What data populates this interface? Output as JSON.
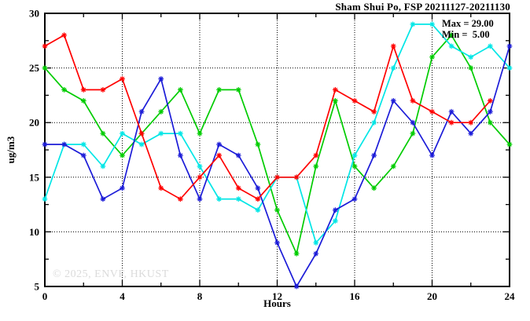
{
  "title": "Sham Shui Po, FSP 20211127-20211130",
  "legend": {
    "max_label": "Max = 29.00",
    "min_label": "Min =  5.00"
  },
  "axes": {
    "ylabel": "ug/m3",
    "xlabel": "Hours"
  },
  "watermark": "© 2025, ENVF, HKUST",
  "colors": {
    "red": "#ff0000",
    "green": "#00cc00",
    "blue": "#1c1cd8",
    "cyan": "#00e6e6"
  },
  "chart_data": {
    "type": "line",
    "title": "Sham Shui Po, FSP 20211127-20211130",
    "xlabel": "Hours",
    "ylabel": "ug/m3",
    "xlim": [
      0,
      24
    ],
    "ylim": [
      5,
      30
    ],
    "x_major_ticks": [
      0,
      4,
      8,
      12,
      16,
      20,
      24
    ],
    "x_minor_ticks": [
      2,
      6,
      10,
      14,
      18,
      22
    ],
    "y_major_ticks": [
      5,
      10,
      15,
      20,
      25,
      30
    ],
    "y_minor_ticks": [
      7.5,
      12.5,
      17.5,
      22.5,
      27.5
    ],
    "grid_x": [
      4,
      8,
      12,
      16,
      20
    ],
    "grid_y": [
      10,
      15,
      20,
      25
    ],
    "grid": true,
    "legend_position": "top-right-inside",
    "annotations": [
      "Max = 29.00",
      "Min =  5.00"
    ],
    "x_start": 0,
    "x_step": 1,
    "series": [
      {
        "name": "green",
        "color": "#00cc00",
        "values": [
          25,
          23,
          22,
          19,
          17,
          19,
          21,
          23,
          19,
          23,
          23,
          18,
          12,
          8,
          16,
          22,
          16,
          14,
          16,
          19,
          26,
          28,
          25,
          20,
          18
        ]
      },
      {
        "name": "cyan",
        "color": "#00e6e6",
        "values": [
          13,
          18,
          18,
          16,
          19,
          18,
          19,
          19,
          16,
          13,
          13,
          12,
          15,
          15,
          9,
          11,
          17,
          20,
          25,
          29,
          29,
          27,
          26,
          27,
          25
        ]
      },
      {
        "name": "blue",
        "color": "#1c1cd8",
        "values": [
          18,
          18,
          17,
          13,
          14,
          21,
          24,
          17,
          13,
          18,
          17,
          14,
          9,
          5,
          8,
          12,
          13,
          17,
          22,
          20,
          17,
          21,
          19,
          21,
          27
        ]
      },
      {
        "name": "red",
        "color": "#ff0000",
        "values": [
          27,
          28,
          23,
          23,
          24,
          19,
          14,
          13,
          15,
          17,
          14,
          13,
          15,
          15,
          17,
          23,
          22,
          21,
          27,
          22,
          21,
          20,
          20,
          22
        ]
      }
    ]
  }
}
